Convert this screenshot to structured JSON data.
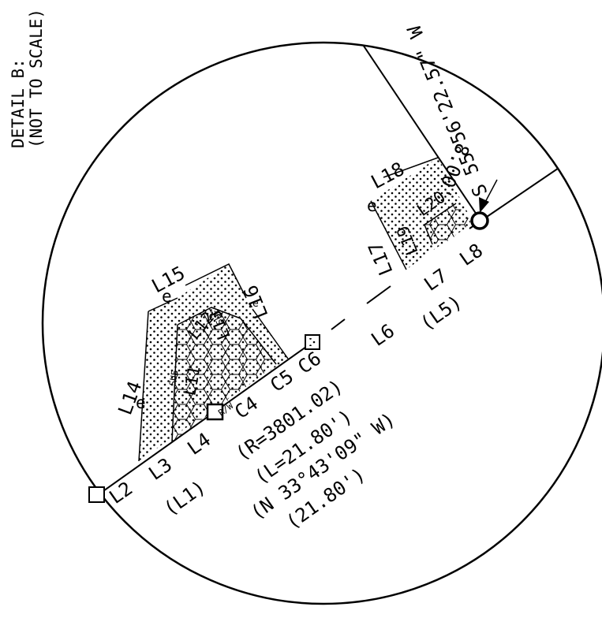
{
  "title": {
    "line1": "DETAIL B:",
    "line2": "(NOT TO SCALE)"
  },
  "labels": {
    "L2": "L2",
    "L3": "L3",
    "L4": "L4",
    "L1": "(L1)",
    "L14": "L14",
    "L15": "L15",
    "L16": "L16",
    "L11": "L11",
    "L12": "L12",
    "L13": "L13",
    "C4": "C4",
    "C5": "C5",
    "C6": "C6",
    "L6": "L6",
    "L7": "L7",
    "L5": "(L5)",
    "L8": "L8",
    "L17": "L17",
    "L18": "L18",
    "L19": "L19",
    "L20": "L20",
    "rw": "R/W",
    "sue1": "SUE",
    "sue2": "SUE",
    "e1": "e",
    "e2": "e",
    "e3": "e",
    "e4": "e"
  },
  "curve": {
    "radius": "(R=3801.02)",
    "length": "(L=21.80')",
    "bearing": "(N 33°43'09\" W)",
    "chord": "(21.80')"
  },
  "bearing_right": {
    "distance": "8.00'",
    "value": "S 55°56'22.57\" W"
  }
}
